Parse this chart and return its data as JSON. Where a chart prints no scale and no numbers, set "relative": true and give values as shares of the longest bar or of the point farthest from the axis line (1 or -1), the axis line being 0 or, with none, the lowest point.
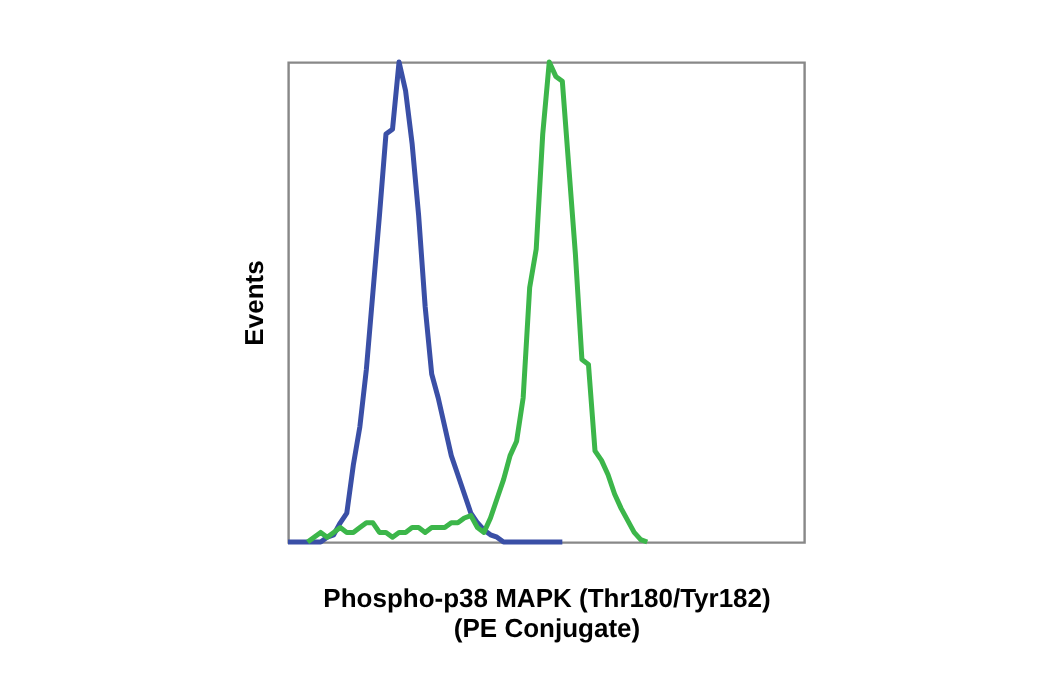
{
  "chart_data": {
    "type": "line",
    "xlabel": "Phospho-p38 MAPK (Thr180/Tyr182)\n(PE Conjugate)",
    "ylabel": "Events",
    "relative": true,
    "grid": false,
    "tick_labels": false,
    "line_style": "solid",
    "marker": "none",
    "categories": [
      null,
      null,
      null,
      null,
      null,
      null,
      null,
      null,
      null,
      null,
      null,
      null,
      null,
      null,
      null,
      null,
      null,
      null,
      null,
      null,
      null,
      null,
      null,
      null,
      null,
      null,
      null,
      null,
      null,
      null,
      null,
      null,
      null,
      null,
      null,
      null,
      null,
      null,
      null,
      null,
      null,
      null,
      null,
      null,
      null,
      null,
      null,
      null,
      null,
      null,
      null,
      null,
      null,
      null,
      null,
      null,
      null,
      null,
      null,
      null,
      null,
      null,
      null,
      null,
      null,
      null,
      null,
      null,
      null,
      null,
      null,
      null,
      null,
      null,
      null,
      null,
      null,
      null,
      null,
      null
    ],
    "series": [
      {
        "color": "#3a4fa6",
        "values": [
          0,
          0,
          0,
          0,
          0,
          0,
          0.01,
          0.015,
          0.04,
          0.06,
          0.16,
          0.24,
          0.36,
          0.52,
          0.68,
          0.85,
          0.86,
          1.0,
          0.94,
          0.83,
          0.68,
          0.49,
          0.35,
          0.3,
          0.24,
          0.18,
          0.14,
          0.1,
          0.06,
          0.04,
          0.025,
          0.015,
          0.01,
          0,
          0,
          0,
          0,
          0,
          0,
          0,
          0,
          0,
          0,
          null,
          null,
          null,
          null,
          null,
          null,
          null,
          null,
          null,
          null,
          null,
          null,
          null,
          null,
          null,
          null,
          null,
          null,
          null,
          null,
          null,
          null,
          null,
          null,
          null,
          null,
          null,
          null,
          null,
          null,
          null,
          null,
          null,
          null,
          null,
          null,
          null
        ]
      },
      {
        "color": "#3cb64a",
        "values": [
          null,
          null,
          null,
          0,
          0.01,
          0.02,
          0.01,
          0.02,
          0.03,
          0.02,
          0.02,
          0.03,
          0.04,
          0.04,
          0.02,
          0.02,
          0.01,
          0.02,
          0.02,
          0.03,
          0.03,
          0.02,
          0.03,
          0.03,
          0.03,
          0.04,
          0.04,
          0.05,
          0.055,
          0.03,
          0.02,
          0.05,
          0.09,
          0.13,
          0.18,
          0.21,
          0.3,
          0.53,
          0.61,
          0.85,
          1.0,
          0.97,
          0.96,
          0.78,
          0.6,
          0.38,
          0.37,
          0.19,
          0.17,
          0.14,
          0.1,
          0.07,
          0.045,
          0.02,
          0.005,
          0,
          null,
          null,
          null,
          null,
          null,
          null,
          null,
          null,
          null,
          null,
          null,
          null,
          null,
          null,
          null,
          null,
          null,
          null,
          null,
          null,
          null,
          null,
          null,
          null
        ]
      }
    ]
  }
}
